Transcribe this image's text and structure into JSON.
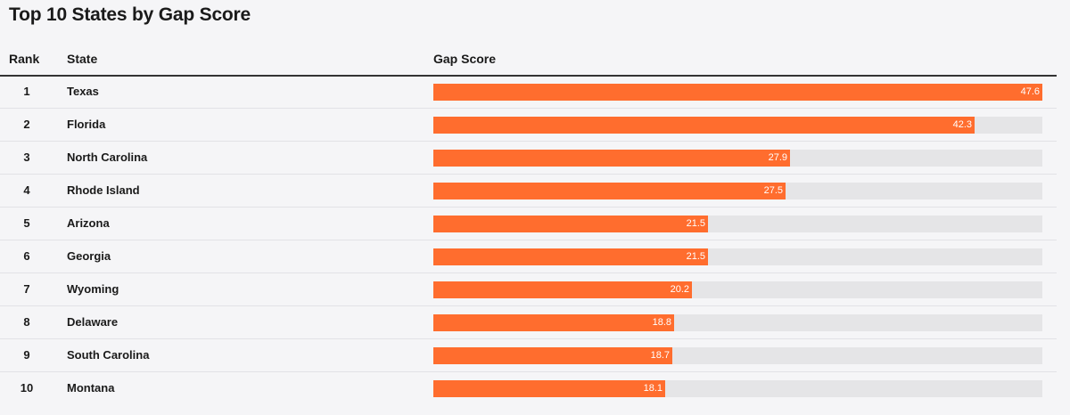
{
  "chart_data": {
    "type": "bar",
    "orientation": "horizontal",
    "title": "Top 10 States by Gap Score",
    "columns": [
      "Rank",
      "State",
      "Gap Score"
    ],
    "xlim": [
      0,
      47.6
    ],
    "bar_color": "#ff6d2e",
    "track_color": "#e5e5e7",
    "rows": [
      {
        "rank": "1",
        "state": "Texas",
        "value": 47.6
      },
      {
        "rank": "2",
        "state": "Florida",
        "value": 42.3
      },
      {
        "rank": "3",
        "state": "North Carolina",
        "value": 27.9
      },
      {
        "rank": "4",
        "state": "Rhode Island",
        "value": 27.5
      },
      {
        "rank": "5",
        "state": "Arizona",
        "value": 21.5
      },
      {
        "rank": "6",
        "state": "Georgia",
        "value": 21.5
      },
      {
        "rank": "7",
        "state": "Wyoming",
        "value": 20.2
      },
      {
        "rank": "8",
        "state": "Delaware",
        "value": 18.8
      },
      {
        "rank": "9",
        "state": "South Carolina",
        "value": 18.7
      },
      {
        "rank": "10",
        "state": "Montana",
        "value": 18.1
      }
    ]
  }
}
